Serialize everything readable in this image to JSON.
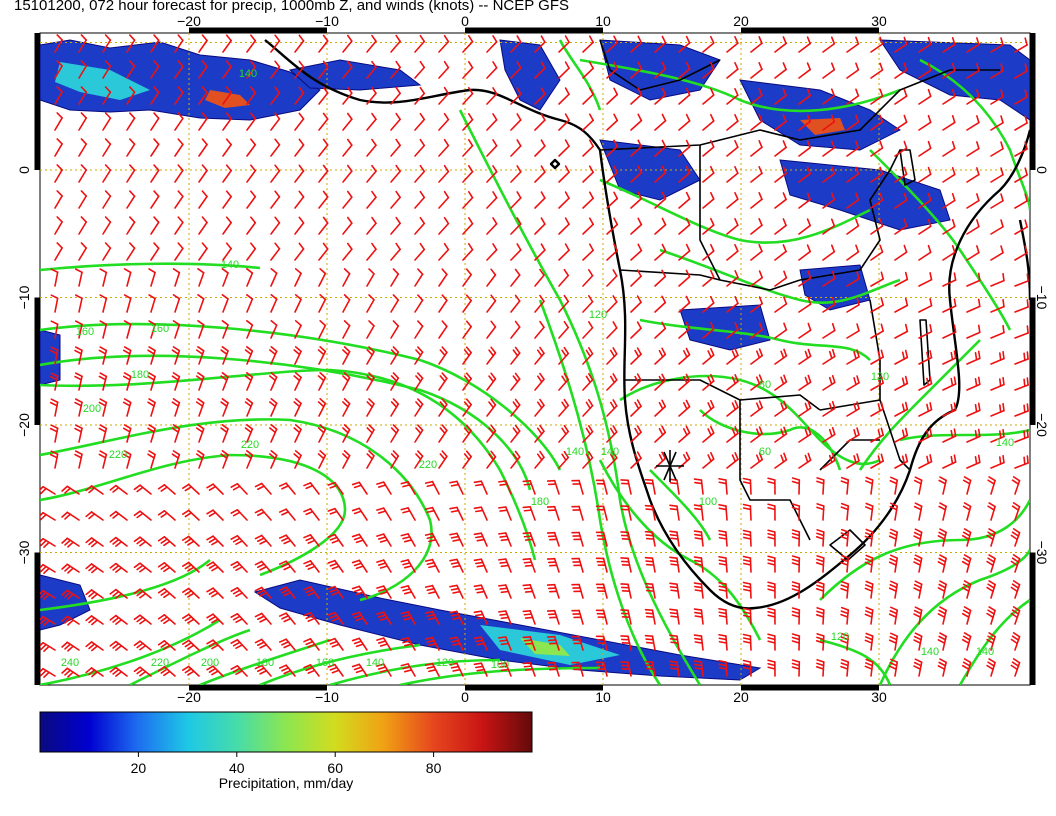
{
  "title": "15101200, 072 hour forecast for precip, 1000mb Z, and winds (knots) -- NCEP GFS",
  "map": {
    "lon_ticks_top": [
      "−20",
      "−10",
      "0",
      "10",
      "20",
      "30"
    ],
    "lon_ticks_bottom": [
      "−20",
      "−10",
      "0",
      "10",
      "20",
      "30"
    ],
    "lat_ticks_left": [
      "0",
      "−10",
      "−20",
      "−30"
    ],
    "lat_ticks_right": [
      "0",
      "−10",
      "−20",
      "−30"
    ],
    "contour_labels": [
      "140",
      "160",
      "160",
      "180",
      "200",
      "220",
      "220",
      "220",
      "240",
      "220",
      "200",
      "180",
      "160",
      "140",
      "120",
      "100",
      "180",
      "140",
      "140",
      "120",
      "100",
      "80",
      "60",
      "120",
      "140",
      "140",
      "120",
      "140",
      "140"
    ],
    "colors": {
      "contour": "#22dd22",
      "wind_barb": "#ee1111",
      "coastline": "#000000",
      "grid": "#ccaa00"
    }
  },
  "colorbar": {
    "ticks": [
      "20",
      "40",
      "60",
      "80"
    ],
    "label": "Precipitation, mm/day",
    "colors": [
      "#0a0a80",
      "#0000d0",
      "#1e6ef0",
      "#1ec8e6",
      "#46dcaa",
      "#8ce650",
      "#d2dc1e",
      "#f0a014",
      "#e6461e",
      "#c81414",
      "#640a0a"
    ]
  }
}
